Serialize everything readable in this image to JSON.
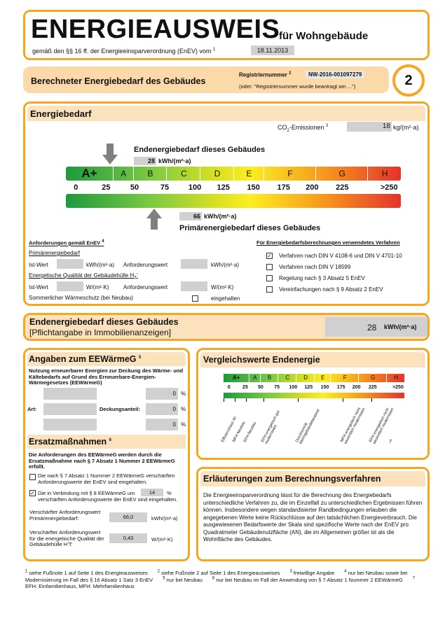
{
  "header": {
    "title": "ENERGIEAUSWEIS",
    "subtitle": "für Wohngebäude",
    "legal": "gemäß den §§ 16 ff. der Energieeinsparverordnung (EnEV) vom",
    "legal_sup": "1",
    "date": "18.11.2013"
  },
  "banner": {
    "title": "Berechneter Energiebedarf des Gebäudes",
    "reg_label": "Registriernummer",
    "reg_sup": "2",
    "reg_number": "NW-2016-001097279",
    "reg_note": "(oder: \"Registriernummer wurde beantragt am ...\")",
    "page_number": "2"
  },
  "energiebedarf": {
    "title": "Energiebedarf",
    "co2_prefix": "CO",
    "co2_sub": "2",
    "co2_suffix": "-Emissionen",
    "co2_sup": "3",
    "co2_value": "18",
    "co2_unit": "kg/(m²·a)",
    "end_label": "Endenergiebedarf dieses Gebäudes",
    "end_value": "28",
    "end_unit": "kWh/(m²·a)",
    "classes": [
      "A+",
      "A",
      "B",
      "C",
      "D",
      "E",
      "F",
      "G",
      "H"
    ],
    "scale": [
      "0",
      "25",
      "50",
      "75",
      "100",
      "125",
      "150",
      "175",
      "200",
      "225",
      ">250"
    ],
    "primary_value": "66",
    "primary_unit": "kWh/(m²·a)",
    "primary_label": "Primärenergiebedarf dieses Gebäudes",
    "requirements": {
      "title": "Anforderungen gemäß EnEV",
      "title_sup": "4",
      "primary": "Primärenergiebedarf",
      "actual": "Ist-Wert",
      "unit1": "kWh/(m²·a)",
      "required": "Anforderungswert",
      "unit2": "kWh/(m²·a)",
      "hull": "Energetische Qualität der Gebäudehülle H",
      "hull_sub": "T",
      "hull_suffix": "’",
      "actual2": "Ist-Wert",
      "unit3": "W/(m²·K)",
      "required2": "Anforderungswert",
      "unit4": "W/(m²·K)",
      "summer": "Sommerlicher Wärmeschutz (bei Neubau)",
      "kept": "eingehalten"
    },
    "method": {
      "title": "Für Energiebedarfsberechnungen verwendetes Verfahren",
      "options": [
        "Verfahren nach DIN V 4108-6 und DIN V 4701-10",
        "Verfahren nach DIN V 18599",
        "Regelung nach § 3 Absatz 5 EnEV",
        "Vereinfachungen nach § 9 Absatz 2 EnEV"
      ]
    }
  },
  "endenergie": {
    "title": "Endenergiebedarf dieses Gebäudes",
    "note": "[Pflichtangabe in Immobilienanzeigen]",
    "value": "28",
    "unit": "kWh/(m²·a)"
  },
  "eewaermeg": {
    "title": "Angaben zum EEWärmeG",
    "title_sup": "5",
    "intro": "Nutzung erneuerbarer Energien zur Deckung des Wärme- und Kältebedarfs auf Grund des Erneuerbare-Energien-Wärmegesetzes (EEWärmeG)",
    "art": "Art:",
    "share": "Deckungsanteil:",
    "values": [
      "0",
      "0",
      "0"
    ],
    "unit": "%",
    "ersatz_title": "Ersatzmaßnahmen",
    "ersatz_sup": "6",
    "ersatz_intro": "Die Anforderungen des EEWärmeG werden durch die Ersatzmaßnahme nach § 7 Absatz 1 Nummer 2 EEWärmeG erfüllt.",
    "option1": "Die nach § 7 Absatz 1 Nummer 2 EEWärmeG verschärften Anforderungswerte der EnEV sind eingehalten.",
    "option2_a": "Die in Verbindung mit § 8 EEWärmeG um",
    "option2_value": "14",
    "option2_unit": "%",
    "option2_b": "verschärften Anforderungswerte der EnEV sind eingehalten.",
    "row1_label": "Verschärfter Anforderungswert Primärenergiebedarf:",
    "row1_value": "66,0",
    "row1_unit": "kWh/(m²·a)",
    "row2_label": "Verschärfter Anforderungswert für die energetische Qualität der Gebäudehülle H’T:",
    "row2_value": "0,43",
    "row2_unit": "W/(m²·K)"
  },
  "vergleich": {
    "title": "Vergleichswerte Endenergie",
    "labels": [
      "Effizienzhaus 40",
      "MFH Neubau",
      "EFH Neubau",
      "EFH energetisch gut modernisiert",
      "Durchschnitt Wohngebäudebestand",
      "MFH energetisch nicht wesentlich modernisiert",
      "EFH energetisch nicht wesentlich modernisiert"
    ],
    "note": "7"
  },
  "erlaeuterung": {
    "title": "Erläuterungen zum Berechnungsverfahren",
    "body": "Die Energieeinsparverordnung lässt für die Berechnung des Energiebedarfs unterschiedliche Verfahren zu, die im Einzelfall zu unterschiedlichen Ergebnissen führen können. Insbesondere wegen standardisierter Randbedingungen erlauben die angegebenen Werte keine Rückschlüsse auf den tatsächlichen Energieverbrauch. Die ausgewiesenen Bedarfswerte der Skala sind spezifische Werte nach der EnEV pro Quadratmeter Gebäudenutzfläche (AN), die im Allgemeinen größer ist als die Wohnfläche des Gebäudes."
  },
  "footnotes": [
    {
      "mark": "1",
      "text": "siehe Fußnote 1 auf Seite 1 des Energieausweises"
    },
    {
      "mark": "2",
      "text": "siehe Fußnote 2 auf Seite 1 des Energieausweises"
    },
    {
      "mark": "3",
      "text": "freiwillige Angabe"
    },
    {
      "mark": "4",
      "text": "nur bei Neubau sowie bei Modernisierung im Fall des § 16 Absatz 1 Satz 3 EnEV"
    },
    {
      "mark": "5",
      "text": "nur bei Neubau"
    },
    {
      "mark": "6",
      "text": "nur bei Neubau im Fall der Anwendung von § 7 Absatz 1 Nummer 2 EEWärmeG"
    },
    {
      "mark": "7",
      "text": "EFH: Einfamilienhaus, MFH: Mehrfamilienhaus"
    }
  ]
}
